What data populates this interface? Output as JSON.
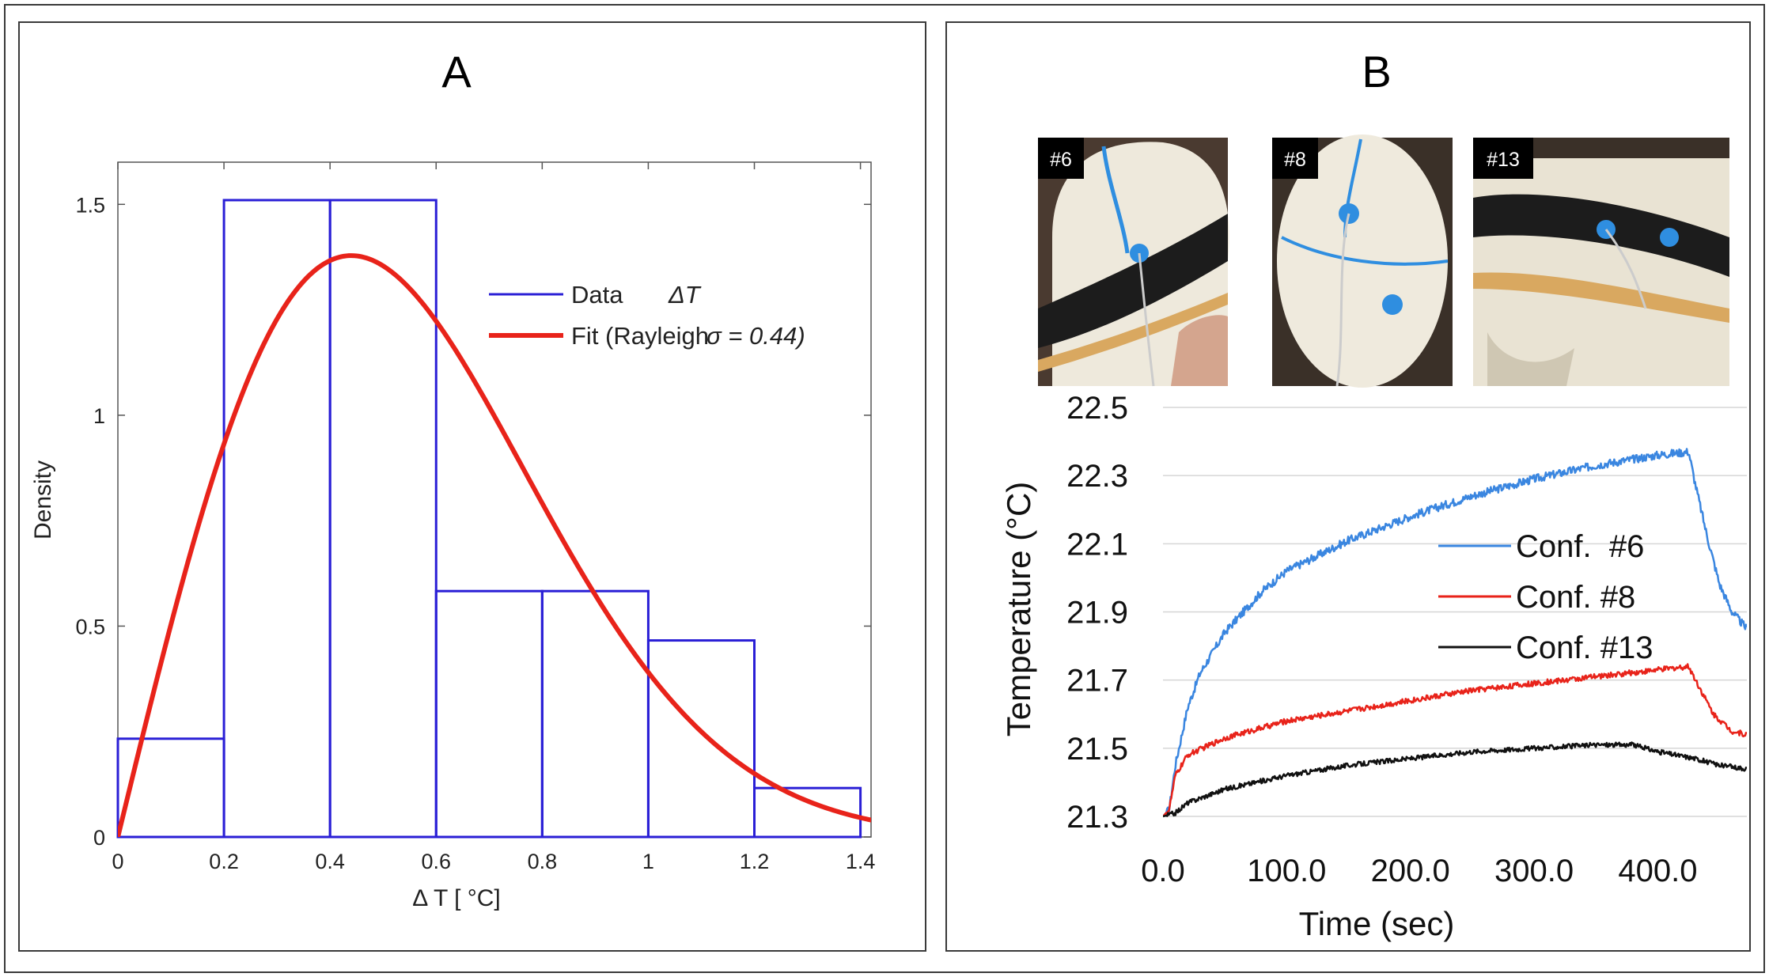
{
  "panels": {
    "a": {
      "label": "A"
    },
    "b": {
      "label": "B"
    }
  },
  "photos": [
    {
      "label": "#6"
    },
    {
      "label": "#8"
    },
    {
      "label": "#13"
    }
  ],
  "colors": {
    "histogram": "#2a1fd6",
    "fit": "#e8231a",
    "conf6": "#3a86e0",
    "conf8": "#e8231a",
    "conf13": "#111111"
  },
  "chart_data": [
    {
      "type": "bar",
      "title": "A",
      "xlabel": "Δ T [ °C]",
      "ylabel": "Density",
      "bin_edges": [
        0,
        0.2,
        0.4,
        0.6,
        0.8,
        1.0,
        1.2,
        1.4
      ],
      "values": [
        0.233,
        1.51,
        1.51,
        0.583,
        0.583,
        0.466,
        0.116
      ],
      "xlim": [
        0,
        1.42
      ],
      "ylim": [
        0,
        1.6
      ],
      "xticks": [
        0,
        0.2,
        0.4,
        0.6,
        0.8,
        1.0,
        1.2,
        1.4
      ],
      "xtick_labels": [
        "0",
        "0.2",
        "0.4",
        "0.6",
        "0.8",
        "1",
        "1.2",
        "1.4"
      ],
      "yticks": [
        0,
        0.5,
        1,
        1.5
      ],
      "ytick_labels": [
        "0",
        "0.5",
        "1",
        "1.5"
      ],
      "fit": {
        "distribution": "Rayleigh",
        "sigma": 0.44
      },
      "legend": [
        {
          "name": "Data",
          "symbol": "ΔT"
        },
        {
          "name": "Fit (Rayleigh",
          "symbol": "σ = 0.44)"
        }
      ],
      "legend_position": "top-right"
    },
    {
      "type": "line",
      "title": "B",
      "xlabel": "Time (sec)",
      "ylabel": "Temperature (°C)",
      "xlim": [
        0,
        472
      ],
      "ylim": [
        21.3,
        22.5
      ],
      "xticks": [
        0,
        100,
        200,
        300,
        400
      ],
      "xtick_labels": [
        "0.0",
        "100.0",
        "200.0",
        "300.0",
        "400.0"
      ],
      "yticks": [
        21.3,
        21.5,
        21.7,
        21.9,
        22.1,
        22.3,
        22.5
      ],
      "ytick_labels": [
        "21.3",
        "21.5",
        "21.7",
        "21.9",
        "22.1",
        "22.3",
        "22.5"
      ],
      "grid": true,
      "legend_position": "right",
      "series": [
        {
          "name": "Conf.  #6",
          "x": [
            0,
            5,
            10,
            20,
            30,
            50,
            80,
            100,
            150,
            200,
            250,
            300,
            350,
            400,
            425,
            430,
            440,
            450,
            460,
            472
          ],
          "y": [
            21.3,
            21.32,
            21.45,
            21.62,
            21.72,
            21.84,
            21.96,
            22.02,
            22.11,
            22.18,
            22.24,
            22.29,
            22.33,
            22.36,
            22.37,
            22.28,
            22.12,
            21.98,
            21.9,
            21.85
          ]
        },
        {
          "name": "Conf. #8",
          "x": [
            0,
            5,
            10,
            20,
            50,
            100,
            150,
            200,
            250,
            300,
            350,
            400,
            425,
            432,
            445,
            460,
            472
          ],
          "y": [
            21.3,
            21.32,
            21.42,
            21.48,
            21.53,
            21.58,
            21.61,
            21.64,
            21.67,
            21.69,
            21.71,
            21.73,
            21.74,
            21.69,
            21.6,
            21.55,
            21.54
          ]
        },
        {
          "name": "Conf. #13",
          "x": [
            0,
            10,
            20,
            50,
            100,
            150,
            200,
            250,
            300,
            350,
            380,
            400,
            430,
            450,
            472
          ],
          "y": [
            21.3,
            21.31,
            21.34,
            21.38,
            21.42,
            21.45,
            21.47,
            21.49,
            21.5,
            21.51,
            21.51,
            21.49,
            21.47,
            21.45,
            21.44
          ]
        }
      ]
    }
  ]
}
